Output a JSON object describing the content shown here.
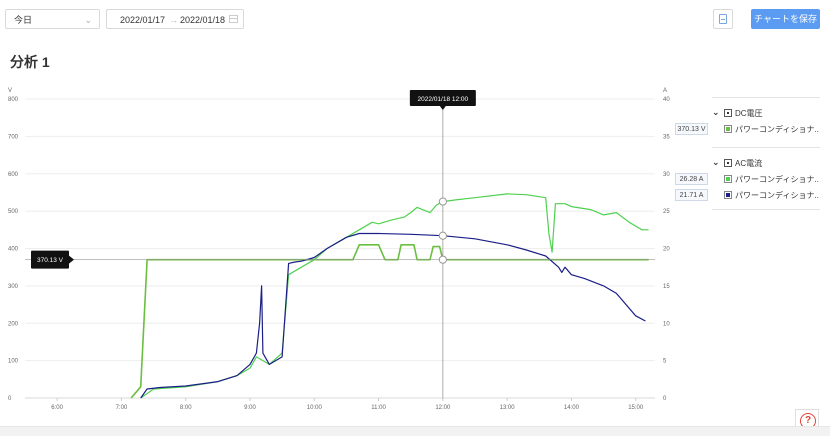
{
  "toolbar": {
    "period_value": "今日",
    "date_start": "2022/01/17",
    "date_arrow": "→",
    "date_end": "2022/01/18",
    "save_label": "チャートを保存"
  },
  "page_title": "分析 1",
  "legend": {
    "groups": [
      {
        "label": "DC電圧",
        "items": [
          {
            "value": "370.13 V",
            "label": "パワーコンディショナ..",
            "color": "#6abf3f"
          }
        ]
      },
      {
        "label": "AC電流",
        "items": [
          {
            "value": "26.28 A",
            "label": "パワーコンディショナ..",
            "color": "#4fd14f"
          },
          {
            "value": "21.71 A",
            "label": "パワーコンディショナ..",
            "color": "#1b1f86"
          }
        ]
      }
    ]
  },
  "chart_data": {
    "type": "line",
    "left_axis_unit": "V",
    "right_axis_unit": "A",
    "ylim_left": [
      0,
      800
    ],
    "ylim_right": [
      0,
      40
    ],
    "left_ticks": [
      "800",
      "700",
      "600",
      "500",
      "400",
      "300",
      "200",
      "100",
      "0"
    ],
    "right_ticks": [
      "40",
      "35",
      "30",
      "25",
      "20",
      "15",
      "10",
      "5",
      "0"
    ],
    "x_ticks": [
      "6:00",
      "7:00",
      "8:00",
      "9:00",
      "10:00",
      "11:00",
      "12:00",
      "13:00",
      "14:00",
      "15:00"
    ],
    "tooltip": "2022/01/18 12:00",
    "crosshair_value": "370.13 V",
    "series": [
      {
        "axis": "left",
        "color": "#6abf3f",
        "points": [
          [
            7.15,
            0
          ],
          [
            7.2,
            10
          ],
          [
            7.3,
            30
          ],
          [
            7.4,
            370
          ],
          [
            8,
            370
          ],
          [
            9,
            370
          ],
          [
            10,
            370
          ],
          [
            10.6,
            370
          ],
          [
            10.7,
            410
          ],
          [
            11,
            410
          ],
          [
            11.1,
            370
          ],
          [
            11.3,
            370
          ],
          [
            11.35,
            410
          ],
          [
            11.55,
            410
          ],
          [
            11.6,
            370
          ],
          [
            11.8,
            370
          ],
          [
            11.85,
            405
          ],
          [
            11.95,
            405
          ],
          [
            12,
            370
          ],
          [
            13,
            370
          ],
          [
            14,
            370
          ],
          [
            15,
            370
          ],
          [
            15.2,
            370
          ]
        ]
      },
      {
        "axis": "right",
        "color": "#4fd14f",
        "points": [
          [
            7.3,
            0
          ],
          [
            7.5,
            1.2
          ],
          [
            8,
            1.5
          ],
          [
            8.5,
            2.2
          ],
          [
            8.8,
            3
          ],
          [
            9,
            4
          ],
          [
            9.1,
            5.5
          ],
          [
            9.2,
            5
          ],
          [
            9.3,
            4.5
          ],
          [
            9.5,
            6
          ],
          [
            9.6,
            16.5
          ],
          [
            9.8,
            17.5
          ],
          [
            10,
            18.5
          ],
          [
            10.2,
            20
          ],
          [
            10.5,
            21.5
          ],
          [
            10.7,
            22.5
          ],
          [
            10.9,
            23.5
          ],
          [
            11,
            23.3
          ],
          [
            11.2,
            23.8
          ],
          [
            11.4,
            24.2
          ],
          [
            11.5,
            24.8
          ],
          [
            11.6,
            25.5
          ],
          [
            11.8,
            24.8
          ],
          [
            11.9,
            25.8
          ],
          [
            12,
            26.28
          ],
          [
            12.2,
            26.5
          ],
          [
            12.5,
            26.8
          ],
          [
            13,
            27.3
          ],
          [
            13.3,
            27.2
          ],
          [
            13.6,
            26.8
          ],
          [
            13.65,
            22
          ],
          [
            13.7,
            19.5
          ],
          [
            13.75,
            26
          ],
          [
            13.9,
            26
          ],
          [
            14,
            25.6
          ],
          [
            14.3,
            25.2
          ],
          [
            14.5,
            24.5
          ],
          [
            14.7,
            24.8
          ],
          [
            14.9,
            23.5
          ],
          [
            15,
            23
          ],
          [
            15.1,
            22.5
          ],
          [
            15.2,
            22.5
          ]
        ]
      },
      {
        "axis": "right",
        "color": "#1b1f86",
        "points": [
          [
            7.3,
            0
          ],
          [
            7.4,
            1.2
          ],
          [
            7.6,
            1.4
          ],
          [
            8,
            1.6
          ],
          [
            8.5,
            2.2
          ],
          [
            8.8,
            3
          ],
          [
            9,
            4.5
          ],
          [
            9.1,
            6
          ],
          [
            9.15,
            10
          ],
          [
            9.18,
            15
          ],
          [
            9.2,
            6
          ],
          [
            9.3,
            4.5
          ],
          [
            9.5,
            5.5
          ],
          [
            9.6,
            18
          ],
          [
            9.7,
            18.2
          ],
          [
            9.8,
            18.3
          ],
          [
            10,
            18.8
          ],
          [
            10.2,
            20
          ],
          [
            10.5,
            21.5
          ],
          [
            10.7,
            22
          ],
          [
            11,
            22
          ],
          [
            11.5,
            21.9
          ],
          [
            12,
            21.71
          ],
          [
            12.5,
            21.3
          ],
          [
            13,
            20.5
          ],
          [
            13.3,
            19.8
          ],
          [
            13.6,
            19
          ],
          [
            13.8,
            17.5
          ],
          [
            13.85,
            16.8
          ],
          [
            13.9,
            17.5
          ],
          [
            14,
            16.5
          ],
          [
            14.2,
            16
          ],
          [
            14.5,
            15
          ],
          [
            14.7,
            14
          ],
          [
            15,
            11
          ],
          [
            15.15,
            10.3
          ]
        ]
      }
    ]
  }
}
